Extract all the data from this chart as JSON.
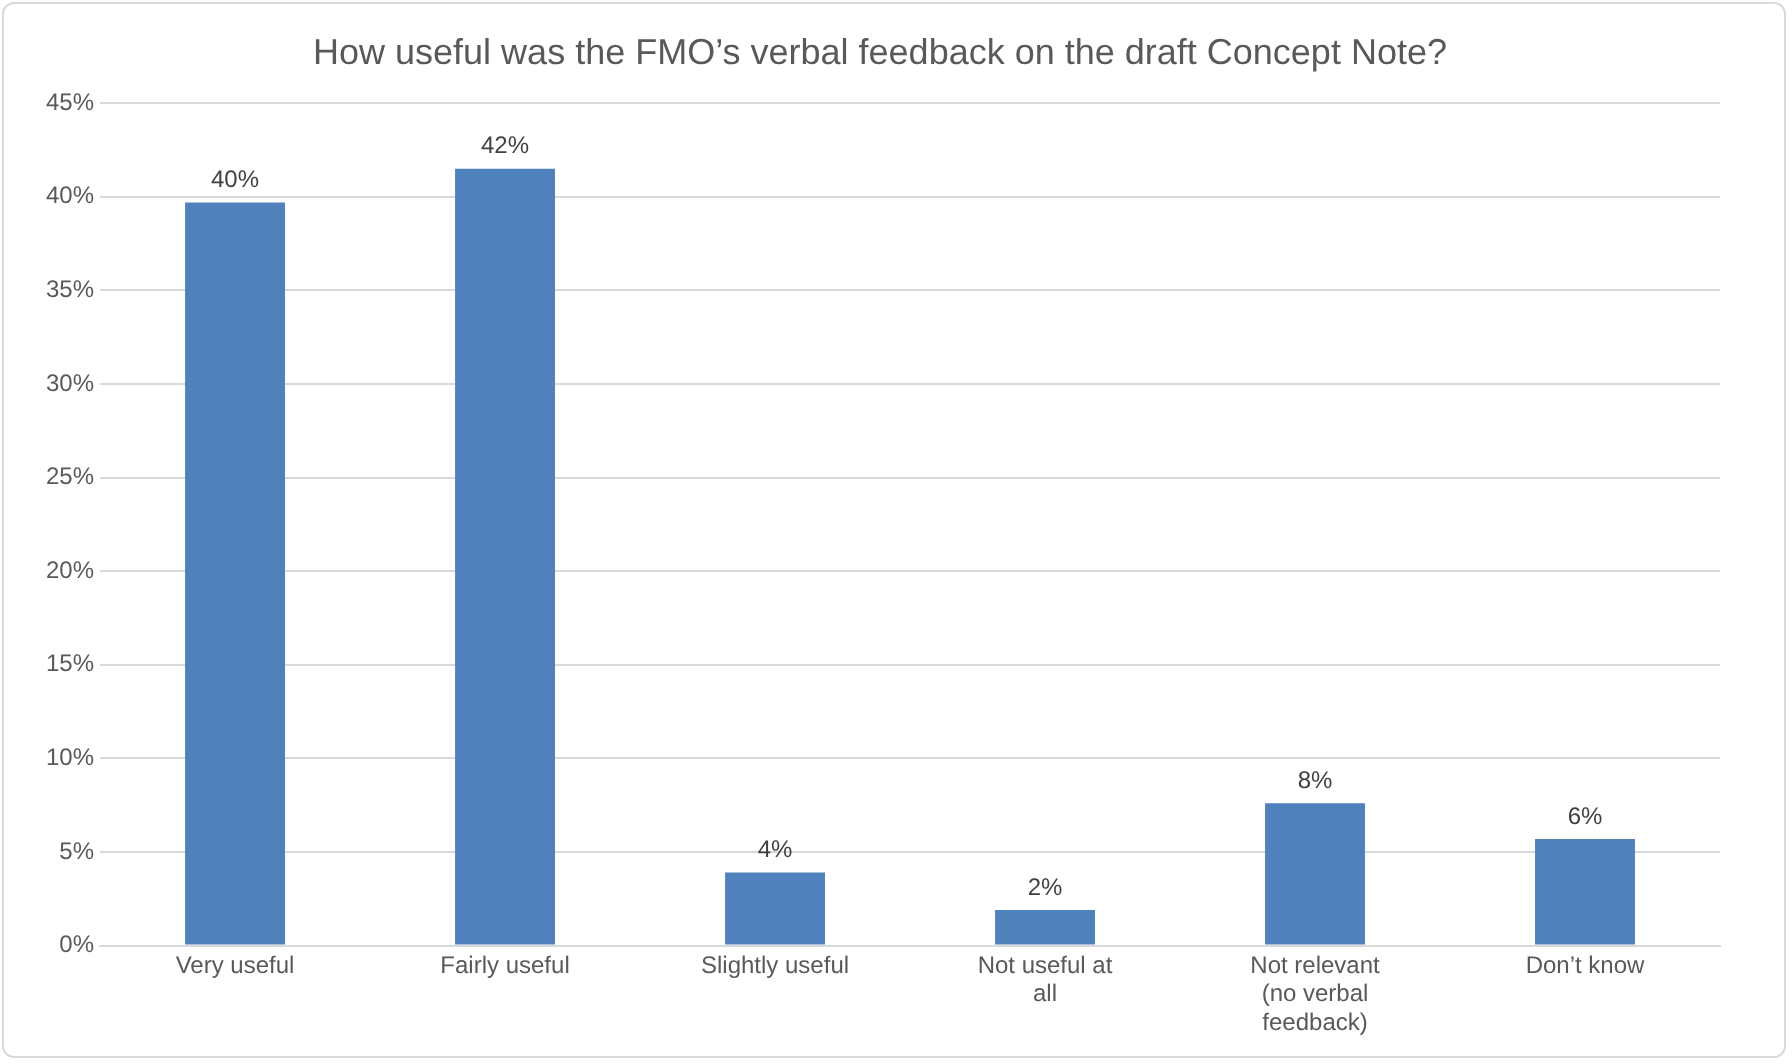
{
  "chart_data": {
    "type": "bar",
    "title": "How useful was the FMO’s verbal feedback on the draft Concept Note?",
    "categories": [
      "Very useful",
      "Fairly useful",
      "Slightly useful",
      "Not useful at all",
      "Not relevant (no verbal feedback)",
      "Don’t know"
    ],
    "values": [
      39.7,
      41.5,
      3.9,
      1.9,
      7.6,
      5.7
    ],
    "value_labels": [
      "40%",
      "42%",
      "4%",
      "2%",
      "8%",
      "6%"
    ],
    "color": "#4f81bd",
    "ylim": [
      0,
      45
    ],
    "yticks": [
      {
        "value": 0,
        "label": "0%"
      },
      {
        "value": 5,
        "label": "5%"
      },
      {
        "value": 10,
        "label": "10%"
      },
      {
        "value": 15,
        "label": "15%"
      },
      {
        "value": 20,
        "label": "20%"
      },
      {
        "value": 25,
        "label": "25%"
      },
      {
        "value": 30,
        "label": "30%"
      },
      {
        "value": 35,
        "label": "35%"
      },
      {
        "value": 40,
        "label": "40%"
      },
      {
        "value": 45,
        "label": "45%"
      }
    ],
    "grid": "y",
    "legend": false
  }
}
